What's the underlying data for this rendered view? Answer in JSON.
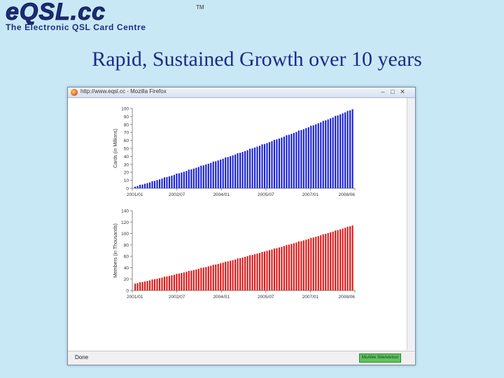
{
  "logo": {
    "main": "eQSL.cc",
    "tm": "TM",
    "sub": "The Electronic QSL Card Centre"
  },
  "slide": {
    "title": "Rapid, Sustained Growth over 10 years"
  },
  "browser": {
    "window_title": "http://www.eqsl.cc - Mozilla Firefox",
    "minimize_label": "–",
    "maximize_label": "□",
    "close_label": "✕",
    "status_text": "Done",
    "status_badge": "McAfee SiteAdvisor"
  },
  "colors": {
    "cards_bar": "#1a22d6",
    "members_bar": "#e01818",
    "slide_background": "#c9e8f6",
    "title": "#1d2c86"
  },
  "chart_data": [
    {
      "type": "bar",
      "ylabel": "Cards (in Millions)",
      "ylim": [
        0,
        100
      ],
      "yticks": [
        "100",
        "90",
        "80",
        "70",
        "60",
        "50",
        "40",
        "30",
        "20",
        "10",
        "0"
      ],
      "xticks": [
        "2001/01",
        "2002/07",
        "2004/01",
        "2005/07",
        "2007/01",
        "2008/06"
      ],
      "grid": false,
      "start_value": 2,
      "end_value": 99,
      "bar_count": 90
    },
    {
      "type": "bar",
      "ylabel": "Members (in Thousands)",
      "ylim": [
        0,
        140
      ],
      "yticks": [
        "140",
        "120",
        "100",
        "80",
        "60",
        "40",
        "20",
        "0"
      ],
      "xticks": [
        "2001/01",
        "2002/07",
        "2004/01",
        "2005/07",
        "2007/01",
        "2008/06"
      ],
      "grid": false,
      "start_value": 12,
      "end_value": 114,
      "bar_count": 90
    }
  ]
}
